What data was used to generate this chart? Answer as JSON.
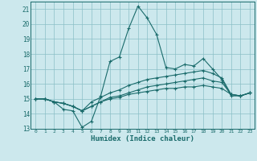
{
  "bg_color": "#cce8ed",
  "grid_color": "#8bbfc7",
  "line_color": "#1a6b6b",
  "spine_color": "#1a6b6b",
  "xlabel": "Humidex (Indice chaleur)",
  "xlim": [
    -0.5,
    23.5
  ],
  "ylim": [
    13,
    21.5
  ],
  "xticks": [
    0,
    1,
    2,
    3,
    4,
    5,
    6,
    7,
    8,
    9,
    10,
    11,
    12,
    13,
    14,
    15,
    16,
    17,
    18,
    19,
    20,
    21,
    22,
    23
  ],
  "yticks": [
    13,
    14,
    15,
    16,
    17,
    18,
    19,
    20,
    21
  ],
  "series": [
    {
      "x": [
        0,
        1,
        2,
        3,
        4,
        5,
        6,
        7,
        8,
        9,
        10,
        11,
        12,
        13,
        14,
        15,
        16,
        17,
        18,
        19,
        20,
        21,
        22,
        23
      ],
      "y": [
        15.0,
        15.0,
        14.8,
        14.3,
        14.2,
        13.1,
        13.5,
        15.2,
        17.5,
        17.8,
        19.7,
        21.2,
        20.4,
        19.3,
        17.1,
        17.0,
        17.3,
        17.2,
        17.7,
        17.0,
        16.3,
        15.2,
        15.2,
        15.4
      ]
    },
    {
      "x": [
        0,
        1,
        2,
        3,
        4,
        5,
        6,
        7,
        8,
        9,
        10,
        11,
        12,
        13,
        14,
        15,
        16,
        17,
        18,
        19,
        20,
        21,
        22,
        23
      ],
      "y": [
        15.0,
        15.0,
        14.8,
        14.7,
        14.5,
        14.2,
        14.8,
        15.1,
        15.4,
        15.6,
        15.9,
        16.1,
        16.3,
        16.4,
        16.5,
        16.6,
        16.7,
        16.8,
        16.9,
        16.7,
        16.4,
        15.3,
        15.2,
        15.4
      ]
    },
    {
      "x": [
        0,
        1,
        2,
        3,
        4,
        5,
        6,
        7,
        8,
        9,
        10,
        11,
        12,
        13,
        14,
        15,
        16,
        17,
        18,
        19,
        20,
        21,
        22,
        23
      ],
      "y": [
        15.0,
        15.0,
        14.8,
        14.7,
        14.5,
        14.2,
        14.5,
        14.8,
        15.1,
        15.2,
        15.4,
        15.6,
        15.8,
        15.9,
        16.0,
        16.1,
        16.2,
        16.3,
        16.4,
        16.2,
        16.1,
        15.3,
        15.2,
        15.4
      ]
    },
    {
      "x": [
        0,
        1,
        2,
        3,
        4,
        5,
        6,
        7,
        8,
        9,
        10,
        11,
        12,
        13,
        14,
        15,
        16,
        17,
        18,
        19,
        20,
        21,
        22,
        23
      ],
      "y": [
        15.0,
        15.0,
        14.8,
        14.7,
        14.5,
        14.2,
        14.5,
        14.8,
        15.0,
        15.1,
        15.3,
        15.4,
        15.5,
        15.6,
        15.7,
        15.7,
        15.8,
        15.8,
        15.9,
        15.8,
        15.7,
        15.3,
        15.2,
        15.4
      ]
    }
  ]
}
